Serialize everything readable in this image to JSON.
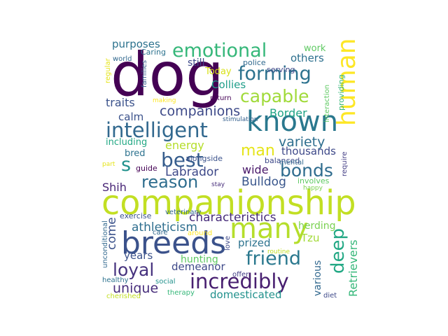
{
  "words": [
    {
      "text": "dog",
      "color": "#440154"
    },
    {
      "text": "companionship",
      "color": "#c2df23"
    },
    {
      "text": "breeds",
      "color": "#3b528b"
    },
    {
      "text": "known",
      "color": "#2a788e"
    },
    {
      "text": "human",
      "color": "#fde725"
    },
    {
      "text": "many",
      "color": "#b5de2b"
    },
    {
      "text": "intelligent",
      "color": "#31688e"
    },
    {
      "text": "incredibly",
      "color": "#481f70"
    },
    {
      "text": "emotional",
      "color": "#35b779"
    },
    {
      "text": "forming",
      "color": "#2c728e"
    },
    {
      "text": "capable",
      "color": "#a0da39"
    },
    {
      "text": "friend",
      "color": "#2a788e"
    },
    {
      "text": "loyal",
      "color": "#46327e"
    },
    {
      "text": "deep",
      "color": "#22a884"
    },
    {
      "text": "best",
      "color": "#365d8d"
    },
    {
      "text": "reason",
      "color": "#2e6d8e"
    },
    {
      "text": "bonds",
      "color": "#2f6c8e"
    },
    {
      "text": "man",
      "color": "#e5e419"
    },
    {
      "text": "s",
      "color": "#21918c"
    },
    {
      "text": "companions",
      "color": "#3e4a89"
    },
    {
      "text": "variety",
      "color": "#2e6e8e"
    },
    {
      "text": "unique",
      "color": "#472d7b"
    },
    {
      "text": "characteristics",
      "color": "#472c7a"
    },
    {
      "text": "athleticism",
      "color": "#2e6e8e"
    },
    {
      "text": "Labrador",
      "color": "#3e4989"
    },
    {
      "text": "Bulldog",
      "color": "#39568c"
    },
    {
      "text": "Retrievers",
      "color": "#35b779"
    },
    {
      "text": "come",
      "color": "#3b528b"
    },
    {
      "text": "wide",
      "color": "#481769"
    },
    {
      "text": "Border",
      "color": "#20a486"
    },
    {
      "text": "Collies",
      "color": "#1f9e89"
    },
    {
      "text": "thousands",
      "color": "#3e4989"
    },
    {
      "text": "energy",
      "color": "#b5de2b"
    },
    {
      "text": "traits",
      "color": "#3b528b"
    },
    {
      "text": "purposes",
      "color": "#2c728e"
    },
    {
      "text": "calm",
      "color": "#3b528b"
    },
    {
      "text": "others",
      "color": "#2d708e"
    },
    {
      "text": "demeanor",
      "color": "#3e4989"
    },
    {
      "text": "domesticated",
      "color": "#21918c"
    },
    {
      "text": "prized",
      "color": "#2c728e"
    },
    {
      "text": "Tzu",
      "color": "#a2da37"
    },
    {
      "text": "herding",
      "color": "#7ad151"
    },
    {
      "text": "various",
      "color": "#31688e"
    },
    {
      "text": "Shih",
      "color": "#482576"
    },
    {
      "text": "hunting",
      "color": "#5ec962"
    },
    {
      "text": "years",
      "color": "#3b528b"
    },
    {
      "text": "including",
      "color": "#22a884"
    },
    {
      "text": "bred",
      "color": "#2c728e"
    },
    {
      "text": "still",
      "color": "#3e4989"
    },
    {
      "text": "Today",
      "color": "#d8e219"
    },
    {
      "text": "work",
      "color": "#5ec962"
    },
    {
      "text": "Caring",
      "color": "#2c728e"
    },
    {
      "text": "world",
      "color": "#31688e"
    },
    {
      "text": "police",
      "color": "#30698e"
    },
    {
      "text": "serving",
      "color": "#3e4989"
    },
    {
      "text": "families",
      "color": "#35608d"
    },
    {
      "text": "regular",
      "color": "#e5e419"
    },
    {
      "text": "making",
      "color": "#fde725"
    },
    {
      "text": "return",
      "color": "#440154"
    },
    {
      "text": "stimulation",
      "color": "#35608d"
    },
    {
      "text": "interaction",
      "color": "#5ec962"
    },
    {
      "text": "providing",
      "color": "#35b779"
    },
    {
      "text": "balanced",
      "color": "#3e4989"
    },
    {
      "text": "mental",
      "color": "#31688e"
    },
    {
      "text": "require",
      "color": "#433e85"
    },
    {
      "text": "guide",
      "color": "#440154"
    },
    {
      "text": "alongside",
      "color": "#3b528b"
    },
    {
      "text": "part",
      "color": "#e5e419"
    },
    {
      "text": "stay",
      "color": "#472d7b"
    },
    {
      "text": "involves",
      "color": "#5ec962"
    },
    {
      "text": "happy",
      "color": "#7ad151"
    },
    {
      "text": "exercise",
      "color": "#3b528b"
    },
    {
      "text": "veterinary",
      "color": "#31688e"
    },
    {
      "text": "unconditional",
      "color": "#31688e"
    },
    {
      "text": "care",
      "color": "#31688e"
    },
    {
      "text": "around",
      "color": "#fde725"
    },
    {
      "text": "love",
      "color": "#3e4989"
    },
    {
      "text": "routine",
      "color": "#c2df23"
    },
    {
      "text": "offer",
      "color": "#433e85"
    },
    {
      "text": "healthy",
      "color": "#2c728e"
    },
    {
      "text": "social",
      "color": "#21918c"
    },
    {
      "text": "therapy",
      "color": "#35b779"
    },
    {
      "text": "cherished",
      "color": "#c2df23"
    },
    {
      "text": "diet",
      "color": "#3e4989"
    }
  ]
}
